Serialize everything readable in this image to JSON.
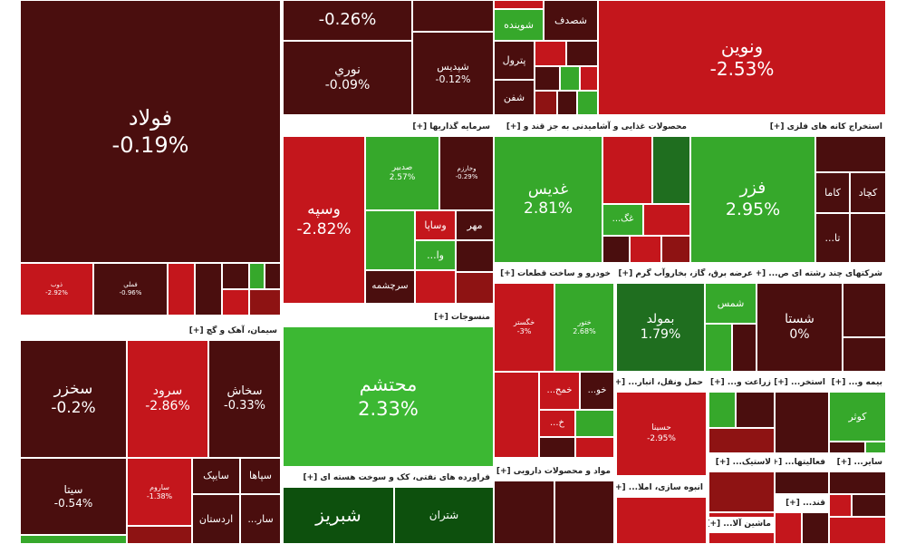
{
  "sections": [
    {
      "tiles": [
        {
          "label": "فولاد",
          "change": "-0.19%"
        },
        {
          "label": "ذوب",
          "change": "-2.92%"
        },
        {
          "label": "فملي",
          "change": "-0.96%"
        }
      ]
    },
    {
      "tiles": [
        {
          "change": "-0.26%"
        },
        {
          "label": "نوري",
          "change": "-0.09%"
        },
        {
          "label": "شپديس",
          "change": "-0.12%"
        },
        {
          "label": "شوينده"
        },
        {
          "label": "شصدف"
        },
        {
          "label": "پترول"
        },
        {
          "label": "شفن"
        }
      ]
    },
    {
      "tiles": [
        {
          "label": "ونوين",
          "change": "-2.53%"
        }
      ]
    },
    {
      "header": "سرمایه گذاریها [+]",
      "tiles": [
        {
          "label": "وسپه",
          "change": "-2.82%"
        },
        {
          "label": "صدبیر",
          "change": "2.57%"
        },
        {
          "label": "وخارزم",
          "change": "-0.29%"
        },
        {
          "label": "وا..."
        },
        {
          "label": "وساپا"
        },
        {
          "label": "مهر"
        },
        {
          "label": "سرچشمه"
        }
      ]
    },
    {
      "header": "محصولات غذایی و آشامیدنی به جز قند و [+]",
      "tiles": [
        {
          "label": "غدیس",
          "change": "2.81%"
        },
        {
          "label": "غگ..."
        }
      ]
    },
    {
      "header": "استخراج کانه های فلزی [+]",
      "tiles": [
        {
          "label": "فزر",
          "change": "2.95%"
        },
        {
          "label": "کچاد"
        },
        {
          "label": "کاما"
        },
        {
          "label": "تا..."
        }
      ]
    },
    {
      "header": "سیمان، آهک و گچ [+]",
      "tiles": [
        {
          "label": "سخزر",
          "change": "-0.2%"
        },
        {
          "label": "سرود",
          "change": "-2.86%"
        },
        {
          "label": "سخاش",
          "change": "-0.33%"
        },
        {
          "label": "سیتا",
          "change": "-0.54%"
        },
        {
          "label": "ساروم",
          "change": "-1.38%"
        },
        {
          "label": "سایپک"
        },
        {
          "label": "سپاها"
        },
        {
          "label": "اردستان"
        },
        {
          "label": "سار..."
        }
      ]
    },
    {
      "header": "منسوجات [+]",
      "tiles": [
        {
          "label": "محتشم",
          "change": "2.33%"
        }
      ]
    },
    {
      "header": "فراورده های نفتی، کک و سوخت هسته ای [+]",
      "tiles": [
        {
          "label": "شبریز"
        },
        {
          "label": "شتران"
        }
      ]
    },
    {
      "header": "خودرو و ساخت قطعات [+]",
      "tiles": [
        {
          "label": "خگستر",
          "change": "-3%"
        },
        {
          "label": "ختور",
          "change": "2.68%"
        },
        {
          "label": "خمح..."
        },
        {
          "label": "خو..."
        },
        {
          "label": "خ..."
        }
      ]
    },
    {
      "header": "مواد و محصولات دارویی [+]"
    },
    {
      "header": "عرضه برق، گاز، بخاروآب گرم [+]",
      "tiles": [
        {
          "label": "بمولد",
          "change": "1.79%"
        },
        {
          "label": "شمس"
        }
      ]
    },
    {
      "header": "شرکتهای چند رشته ای ص... [+]",
      "tiles": [
        {
          "label": "شستا",
          "change": "0%"
        }
      ]
    },
    {
      "header": "حمل ونقل، انبار... [+]",
      "tiles": [
        {
          "label": "حسینا",
          "change": "-2.95%"
        }
      ]
    },
    {
      "header": "زراعت و... [+]"
    },
    {
      "header": "استخر... [+]"
    },
    {
      "header": "بیمه و... [+]",
      "tiles": [
        {
          "label": "کوثر"
        }
      ]
    },
    {
      "header": "لاستیک... [+]"
    },
    {
      "header": "فعالیتها... [+]"
    },
    {
      "header": "سایر... [+]"
    },
    {
      "header": "انبوه سازی، املا... [+]"
    },
    {
      "header": "ماشین آلا... [+]"
    },
    {
      "header": "قند... [+]"
    }
  ]
}
